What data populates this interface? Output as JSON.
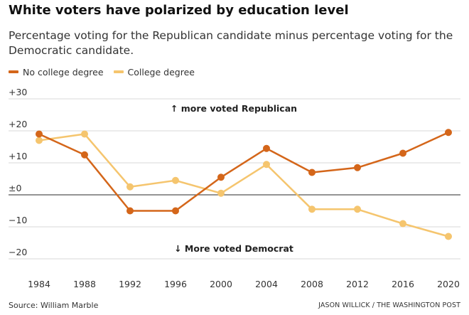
{
  "title": "White voters have polarized by education level",
  "subtitle": "Percentage voting for the Republican candidate minus percentage voting for the Democratic candidate.",
  "legend": [
    {
      "label": "No college degree",
      "color": "#d4661a"
    },
    {
      "label": "College degree",
      "color": "#f5c56e"
    }
  ],
  "annotations": {
    "up": "↑ more voted Republican",
    "down": "↓ More voted Democrat"
  },
  "source": "Source: William Marble",
  "credit": "JASON WILLICK / THE WASHINGTON POST",
  "chart_data": {
    "type": "line",
    "title": "White voters have polarized by education level",
    "subtitle": "Percentage voting for the Republican candidate minus percentage voting for the Democratic candidate.",
    "xlabel": "",
    "ylabel": "",
    "x": [
      "1984",
      "1988",
      "1992",
      "1996",
      "2000",
      "2004",
      "2008",
      "2012",
      "2016",
      "2020"
    ],
    "ylim": [
      -20,
      30
    ],
    "yticks": [
      {
        "value": 30,
        "label": "+30"
      },
      {
        "value": 20,
        "label": "+20"
      },
      {
        "value": 10,
        "label": "+10"
      },
      {
        "value": 0,
        "label": "±0"
      },
      {
        "value": -10,
        "label": "−10"
      },
      {
        "value": -20,
        "label": "−20"
      }
    ],
    "grid": true,
    "legend_position": "top-left",
    "series": [
      {
        "name": "No college degree",
        "color": "#d4661a",
        "values": [
          19,
          12.5,
          -5,
          -5,
          5.5,
          14.5,
          7,
          8.5,
          13,
          19.5
        ]
      },
      {
        "name": "College degree",
        "color": "#f5c56e",
        "values": [
          17,
          19,
          2.5,
          4.5,
          0.5,
          9.5,
          -4.5,
          -4.5,
          -9,
          -13
        ]
      }
    ]
  }
}
